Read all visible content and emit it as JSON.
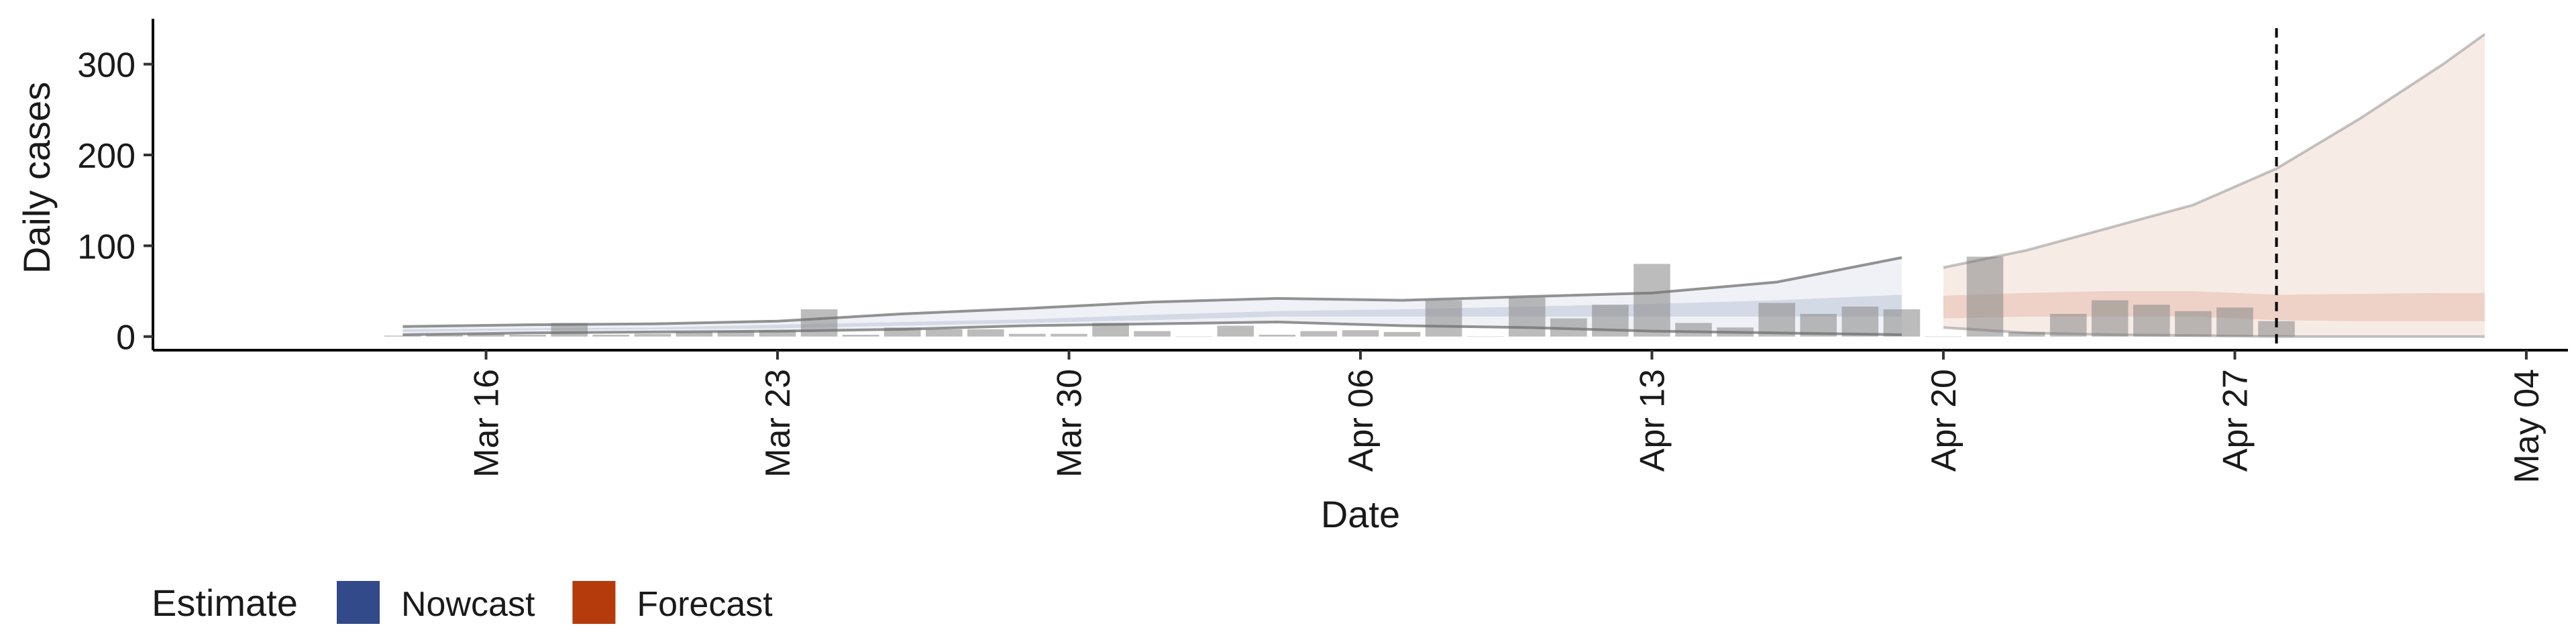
{
  "chart_data": {
    "type": "bar",
    "xlabel": "Date",
    "ylabel": "Daily cases",
    "ylim": [
      -15,
      350
    ],
    "xlim": [
      "2020-03-08",
      "2020-05-05"
    ],
    "x_ticks": [
      {
        "date": "2020-03-16",
        "label": "Mar 16"
      },
      {
        "date": "2020-03-23",
        "label": "Mar 23"
      },
      {
        "date": "2020-03-30",
        "label": "Mar 30"
      },
      {
        "date": "2020-04-06",
        "label": "Apr 06"
      },
      {
        "date": "2020-04-13",
        "label": "Apr 13"
      },
      {
        "date": "2020-04-20",
        "label": "Apr 20"
      },
      {
        "date": "2020-04-27",
        "label": "Apr 27"
      },
      {
        "date": "2020-05-04",
        "label": "May 04"
      }
    ],
    "y_ticks": [
      0,
      100,
      200,
      300
    ],
    "grid": false,
    "reported_cases": {
      "dates": [
        "2020-03-14",
        "2020-03-15",
        "2020-03-16",
        "2020-03-17",
        "2020-03-18",
        "2020-03-19",
        "2020-03-20",
        "2020-03-21",
        "2020-03-22",
        "2020-03-23",
        "2020-03-24",
        "2020-03-25",
        "2020-03-26",
        "2020-03-27",
        "2020-03-28",
        "2020-03-29",
        "2020-03-30",
        "2020-03-31",
        "2020-04-01",
        "2020-04-02",
        "2020-04-03",
        "2020-04-04",
        "2020-04-05",
        "2020-04-06",
        "2020-04-07",
        "2020-04-08",
        "2020-04-09",
        "2020-04-10",
        "2020-04-11",
        "2020-04-12",
        "2020-04-13",
        "2020-04-14",
        "2020-04-15",
        "2020-04-16",
        "2020-04-17",
        "2020-04-18",
        "2020-04-19",
        "2020-04-20",
        "2020-04-21",
        "2020-04-22",
        "2020-04-23",
        "2020-04-24",
        "2020-04-25",
        "2020-04-26",
        "2020-04-27",
        "2020-04-28"
      ],
      "values": [
        1,
        2,
        3,
        2,
        15,
        2,
        3,
        5,
        6,
        7,
        30,
        2,
        10,
        8,
        8,
        3,
        3,
        15,
        6,
        0,
        12,
        2,
        6,
        7,
        5,
        40,
        0,
        43,
        20,
        35,
        80,
        15,
        10,
        37,
        25,
        33,
        30,
        0,
        88,
        5,
        25,
        40,
        35,
        28,
        32,
        17
      ]
    },
    "series": [
      {
        "name": "Nowcast",
        "color": "#32498a",
        "dates": [
          "2020-03-14",
          "2020-03-17",
          "2020-03-20",
          "2020-03-23",
          "2020-03-26",
          "2020-03-29",
          "2020-04-01",
          "2020-04-04",
          "2020-04-07",
          "2020-04-10",
          "2020-04-13",
          "2020-04-16",
          "2020-04-19"
        ],
        "median": [
          6,
          8,
          9,
          11,
          14,
          17,
          21,
          25,
          26,
          28,
          30,
          31,
          32
        ],
        "inner_lower": [
          5,
          7,
          8,
          9,
          12,
          15,
          18,
          22,
          22,
          22,
          22,
          22,
          22
        ],
        "inner_upper": [
          8,
          9,
          10,
          13,
          16,
          19,
          24,
          28,
          30,
          33,
          36,
          40,
          46
        ],
        "outer_lower": [
          2,
          4,
          5,
          6,
          8,
          12,
          14,
          16,
          12,
          10,
          6,
          4,
          2
        ],
        "outer_upper": [
          11,
          13,
          14,
          17,
          25,
          31,
          38,
          42,
          40,
          44,
          48,
          60,
          87
        ]
      },
      {
        "name": "Forecast",
        "color": "#b53a0c",
        "dates": [
          "2020-04-20",
          "2020-04-22",
          "2020-04-24",
          "2020-04-26",
          "2020-04-28",
          "2020-04-30",
          "2020-05-02",
          "2020-05-03"
        ],
        "median": [
          30,
          31,
          32,
          33,
          30,
          30,
          31,
          32
        ],
        "inner_lower": [
          20,
          22,
          22,
          22,
          18,
          17,
          17,
          17
        ],
        "inner_upper": [
          45,
          48,
          50,
          50,
          46,
          47,
          48,
          48
        ],
        "outer_lower": [
          10,
          4,
          2,
          1,
          0,
          0,
          0,
          0
        ],
        "outer_upper": [
          76,
          95,
          120,
          145,
          185,
          240,
          300,
          333
        ]
      }
    ],
    "vline_date": "2020-04-28",
    "legend": {
      "title": "Estimate",
      "position": "bottom-left",
      "items": [
        {
          "label": "Nowcast",
          "color": "#32498a"
        },
        {
          "label": "Forecast",
          "color": "#b53a0c"
        }
      ]
    }
  }
}
